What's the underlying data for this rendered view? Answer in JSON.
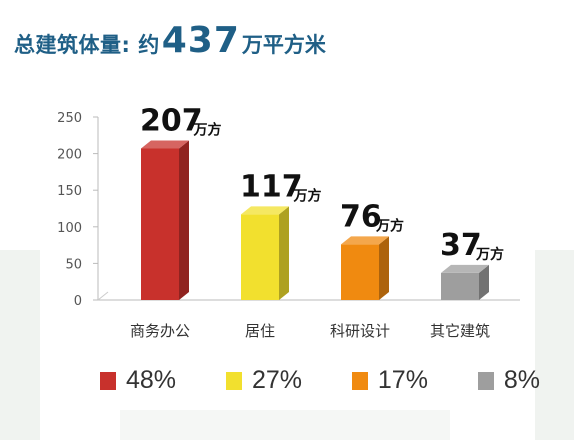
{
  "title": {
    "prefix": "总建筑体量: 约",
    "value": "437",
    "suffix": "万平方米"
  },
  "chart_data": {
    "type": "bar",
    "categories": [
      "商务办公",
      "居住",
      "科研设计",
      "其它建筑"
    ],
    "values": [
      207,
      117,
      76,
      37
    ],
    "value_labels": [
      "207",
      "117",
      "76",
      "37"
    ],
    "value_unit": "万方",
    "colors": [
      "#c8312c",
      "#f2e02e",
      "#f08a10",
      "#9e9e9e"
    ],
    "y_ticks": [
      "0",
      "50",
      "100",
      "150",
      "200",
      "250"
    ],
    "ylim": [
      0,
      250
    ],
    "grid": false
  },
  "legend": [
    {
      "label": "48%",
      "color": "#c8312c"
    },
    {
      "label": "27%",
      "color": "#f2e02e"
    },
    {
      "label": "17%",
      "color": "#f08a10"
    },
    {
      "label": "8%",
      "color": "#9e9e9e"
    }
  ]
}
